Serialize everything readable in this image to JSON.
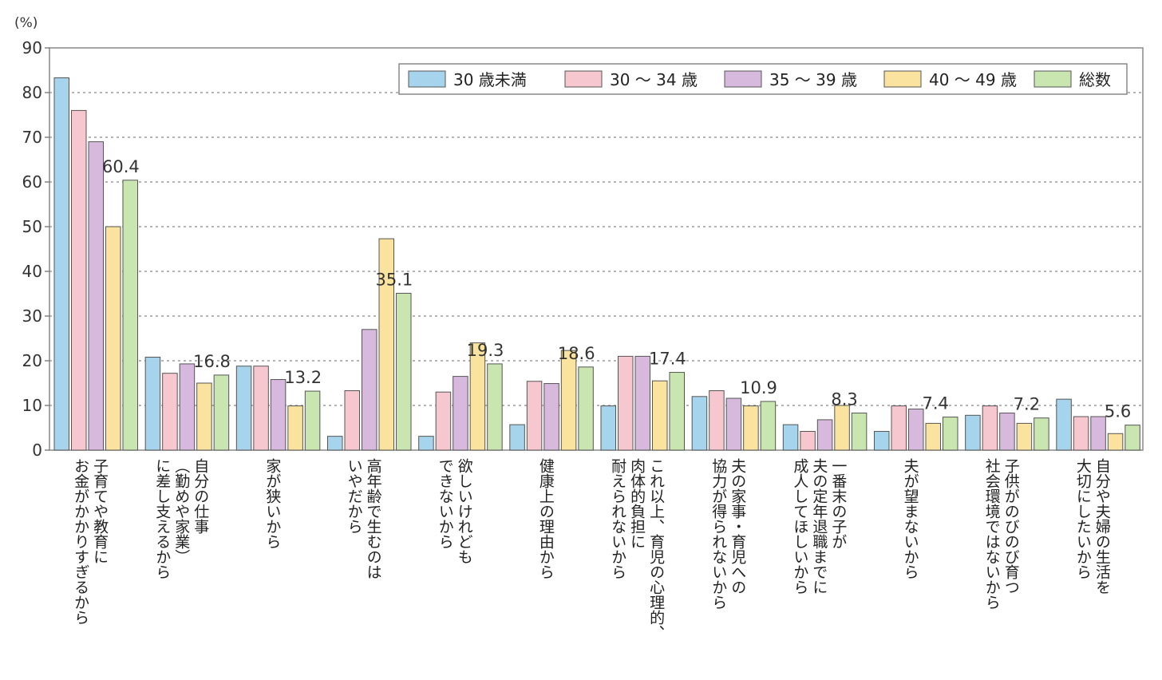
{
  "chart_data": {
    "type": "bar",
    "ylabel": "(%)",
    "ylim": [
      0,
      90
    ],
    "yticks": [
      "0",
      "10",
      "20",
      "30",
      "40",
      "50",
      "60",
      "70",
      "80",
      "90"
    ],
    "grid": "horizontal-dotted",
    "legend_position": "top-right",
    "categories": [
      [
        "子育てや教育に",
        "お金がかかりすぎるから"
      ],
      [
        "自分の仕事",
        "（勤めや家業）",
        "に差し支えるから"
      ],
      [
        "家が狭いから"
      ],
      [
        "高年齢で生むのは",
        "いやだから"
      ],
      [
        "欲しいけれども",
        "できないから"
      ],
      [
        "健康上の理由から"
      ],
      [
        "これ以上、育児の心理的、",
        "肉体的負担に",
        "耐えられないから"
      ],
      [
        "夫の家事・育児への",
        "協力が得られないから"
      ],
      [
        "一番末の子が",
        "夫の定年退職までに",
        "成人してほしいから"
      ],
      [
        "夫が望まないから"
      ],
      [
        "子供がのびのび育つ",
        "社会環境ではないから"
      ],
      [
        "自分や夫婦の生活を",
        "大切にしたいから"
      ]
    ],
    "series": [
      {
        "name": "30 歳未満",
        "color": "#a6d4ec",
        "values": [
          83.3,
          20.8,
          18.8,
          3.1,
          3.1,
          5.7,
          9.9,
          12.0,
          5.7,
          4.2,
          7.8,
          11.4
        ]
      },
      {
        "name": "30 ～ 34 歳",
        "color": "#f7c7d0",
        "values": [
          76.0,
          17.2,
          18.8,
          13.3,
          13.0,
          15.4,
          21.0,
          13.3,
          4.2,
          9.9,
          9.9,
          7.5
        ]
      },
      {
        "name": "35 ～ 39 歳",
        "color": "#d7b9dd",
        "values": [
          69.0,
          19.3,
          15.8,
          27.0,
          16.5,
          14.9,
          21.0,
          11.6,
          6.8,
          9.2,
          8.3,
          7.5
        ]
      },
      {
        "name": "40 ～ 49 歳",
        "color": "#fae39e",
        "values": [
          50.0,
          15.0,
          9.9,
          47.3,
          24.0,
          22.3,
          15.5,
          9.9,
          10.0,
          6.0,
          6.0,
          3.7
        ]
      },
      {
        "name": "総数",
        "color": "#c9e5b0",
        "values": [
          60.4,
          16.8,
          13.2,
          35.1,
          19.3,
          18.6,
          17.4,
          10.9,
          8.3,
          7.4,
          7.2,
          5.6
        ]
      }
    ],
    "data_labels": [
      "60.4",
      "16.8",
      "13.2",
      "35.1",
      "19.3",
      "18.6",
      "17.4",
      "10.9",
      "8.3",
      "7.4",
      "7.2",
      "5.6"
    ]
  }
}
